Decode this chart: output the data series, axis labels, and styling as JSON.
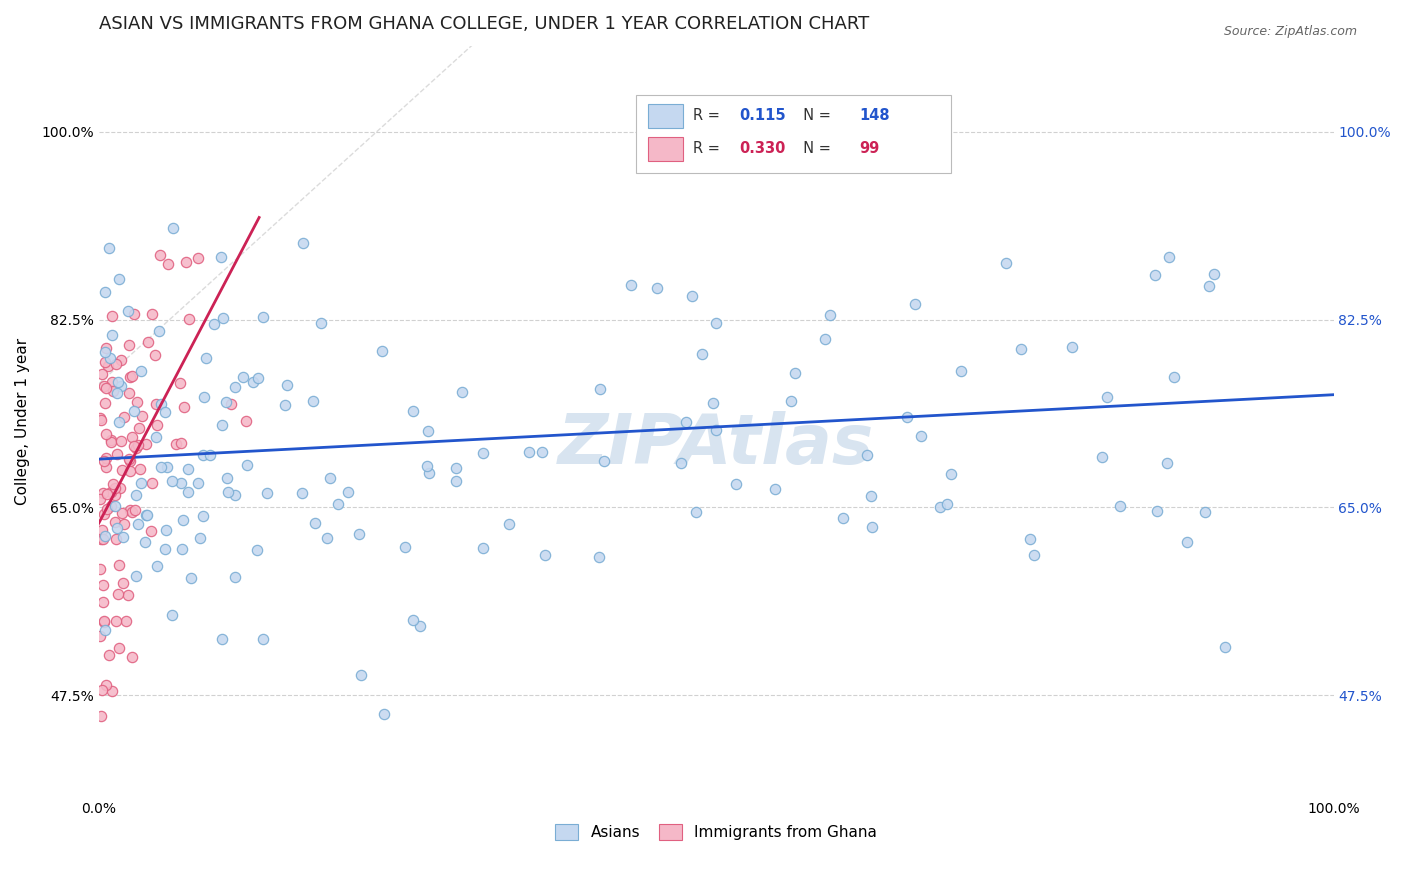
{
  "title": "ASIAN VS IMMIGRANTS FROM GHANA COLLEGE, UNDER 1 YEAR CORRELATION CHART",
  "source_text": "Source: ZipAtlas.com",
  "ylabel": "College, Under 1 year",
  "xlim": [
    0.0,
    1.0
  ],
  "ylim": [
    0.38,
    1.08
  ],
  "xtick_labels": [
    "0.0%",
    "100.0%"
  ],
  "xtick_positions": [
    0.0,
    1.0
  ],
  "ytick_labels": [
    "47.5%",
    "65.0%",
    "82.5%",
    "100.0%"
  ],
  "ytick_positions": [
    0.475,
    0.65,
    0.825,
    1.0
  ],
  "asian_fill": "#c5d8f0",
  "asian_edge": "#7aadd4",
  "ghana_fill": "#f5b8c8",
  "ghana_edge": "#e06080",
  "trend_blue": "#2255cc",
  "trend_pink": "#cc2255",
  "watermark_color": "#d8e4f0",
  "legend_r1": "0.115",
  "legend_n1": "148",
  "legend_r2": "0.330",
  "legend_n2": "99",
  "asian_n": 148,
  "ghana_n": 99,
  "marker_size": 55,
  "blue_line_x0": 0.0,
  "blue_line_y0": 0.695,
  "blue_line_x1": 1.0,
  "blue_line_y1": 0.755,
  "pink_line_x0": 0.0,
  "pink_line_y0": 0.635,
  "pink_line_x1": 0.13,
  "pink_line_y1": 0.92
}
